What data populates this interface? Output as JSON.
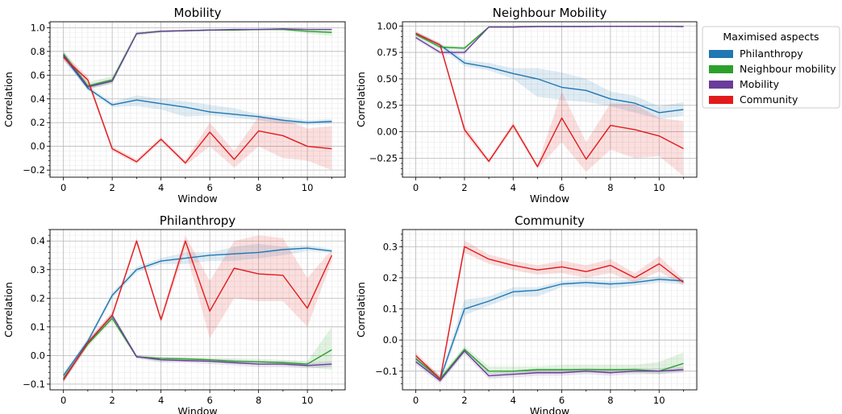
{
  "chart_data": [
    {
      "type": "line",
      "title": "Mobility",
      "xlabel": "Window",
      "ylabel": "Correlation",
      "xlim": [
        -0.55,
        11.55
      ],
      "ylim": [
        -0.26,
        1.05
      ],
      "xticks": [
        0,
        2,
        4,
        6,
        8,
        10
      ],
      "yticks": [
        -0.2,
        0.0,
        0.2,
        0.4,
        0.6,
        0.8,
        1.0
      ],
      "ytick_labels": [
        "−0.2",
        "0.0",
        "0.2",
        "0.4",
        "0.6",
        "0.8",
        "1.0"
      ],
      "grid": true,
      "x": [
        0,
        1,
        2,
        3,
        4,
        5,
        6,
        7,
        8,
        9,
        10,
        11
      ],
      "series": [
        {
          "name": "Philanthropy",
          "values": [
            0.76,
            0.49,
            0.35,
            0.39,
            0.36,
            0.33,
            0.29,
            0.27,
            0.25,
            0.22,
            0.2,
            0.21
          ],
          "lower": [
            0.73,
            0.47,
            0.33,
            0.34,
            0.31,
            0.25,
            0.26,
            0.24,
            0.22,
            0.19,
            0.18,
            0.19
          ],
          "upper": [
            0.79,
            0.51,
            0.37,
            0.43,
            0.4,
            0.38,
            0.35,
            0.32,
            0.27,
            0.25,
            0.22,
            0.23
          ]
        },
        {
          "name": "Neighbour mobility",
          "values": [
            0.78,
            0.51,
            0.56,
            0.95,
            0.97,
            0.975,
            0.98,
            0.98,
            0.985,
            0.985,
            0.97,
            0.96
          ],
          "lower": [
            0.75,
            0.48,
            0.53,
            0.93,
            0.96,
            0.965,
            0.97,
            0.97,
            0.975,
            0.975,
            0.95,
            0.93
          ],
          "upper": [
            0.81,
            0.54,
            0.59,
            0.97,
            0.98,
            0.985,
            0.99,
            0.99,
            0.99,
            0.99,
            0.99,
            0.99
          ]
        },
        {
          "name": "Mobility",
          "values": [
            0.77,
            0.5,
            0.55,
            0.95,
            0.97,
            0.975,
            0.98,
            0.985,
            0.985,
            0.99,
            0.985,
            0.985
          ],
          "lower": [
            0.74,
            0.48,
            0.53,
            0.94,
            0.96,
            0.965,
            0.97,
            0.975,
            0.98,
            0.98,
            0.98,
            0.98
          ],
          "upper": [
            0.8,
            0.52,
            0.57,
            0.96,
            0.975,
            0.98,
            0.985,
            0.99,
            0.99,
            0.995,
            0.99,
            0.99
          ]
        },
        {
          "name": "Community",
          "values": [
            0.75,
            0.56,
            -0.02,
            -0.13,
            0.06,
            -0.14,
            0.12,
            -0.11,
            0.13,
            0.09,
            0.0,
            -0.02
          ],
          "lower": [
            0.72,
            0.53,
            -0.04,
            -0.15,
            0.04,
            -0.16,
            0.0,
            -0.18,
            0.0,
            -0.1,
            -0.12,
            -0.2
          ],
          "upper": [
            0.78,
            0.59,
            0.0,
            -0.11,
            0.08,
            -0.12,
            0.2,
            -0.04,
            0.25,
            0.23,
            0.15,
            0.17
          ]
        }
      ]
    },
    {
      "type": "line",
      "title": "Neighbour Mobility",
      "xlabel": "Window",
      "ylabel": "Correlation",
      "xlim": [
        -0.55,
        11.55
      ],
      "ylim": [
        -0.43,
        1.04
      ],
      "xticks": [
        0,
        2,
        4,
        6,
        8,
        10
      ],
      "yticks": [
        -0.25,
        0.0,
        0.25,
        0.5,
        0.75,
        1.0
      ],
      "ytick_labels": [
        "−0.25",
        "0.00",
        "0.25",
        "0.50",
        "0.75",
        "1.00"
      ],
      "grid": true,
      "x": [
        0,
        1,
        2,
        3,
        4,
        5,
        6,
        7,
        8,
        9,
        10,
        11
      ],
      "series": [
        {
          "name": "Philanthropy",
          "values": [
            0.93,
            0.82,
            0.65,
            0.61,
            0.55,
            0.5,
            0.42,
            0.39,
            0.31,
            0.27,
            0.18,
            0.21
          ],
          "lower": [
            0.91,
            0.8,
            0.62,
            0.58,
            0.5,
            0.33,
            0.3,
            0.28,
            0.24,
            0.18,
            0.12,
            0.15
          ],
          "upper": [
            0.95,
            0.84,
            0.68,
            0.65,
            0.6,
            0.6,
            0.56,
            0.5,
            0.38,
            0.34,
            0.24,
            0.28
          ]
        },
        {
          "name": "Neighbour mobility",
          "values": [
            0.92,
            0.8,
            0.79,
            0.99,
            0.99,
            0.995,
            0.995,
            0.995,
            0.997,
            0.997,
            0.997,
            0.995
          ],
          "lower": [
            0.9,
            0.78,
            0.77,
            0.985,
            0.985,
            0.99,
            0.99,
            0.99,
            0.993,
            0.993,
            0.993,
            0.99
          ],
          "upper": [
            0.94,
            0.82,
            0.81,
            0.995,
            0.995,
            0.998,
            0.998,
            0.998,
            0.999,
            0.999,
            0.999,
            0.998
          ]
        },
        {
          "name": "Mobility",
          "values": [
            0.89,
            0.75,
            0.75,
            0.99,
            0.99,
            0.995,
            0.995,
            0.995,
            0.997,
            0.997,
            0.997,
            0.995
          ],
          "lower": [
            0.87,
            0.73,
            0.73,
            0.985,
            0.985,
            0.99,
            0.99,
            0.99,
            0.993,
            0.993,
            0.993,
            0.99
          ],
          "upper": [
            0.91,
            0.77,
            0.77,
            0.995,
            0.995,
            0.998,
            0.998,
            0.998,
            0.999,
            0.999,
            0.999,
            0.998
          ]
        },
        {
          "name": "Community",
          "values": [
            0.93,
            0.82,
            0.02,
            -0.28,
            0.06,
            -0.33,
            0.13,
            -0.26,
            0.06,
            0.02,
            -0.04,
            -0.16
          ],
          "lower": [
            0.91,
            0.8,
            -0.02,
            -0.3,
            0.03,
            -0.35,
            -0.1,
            -0.38,
            -0.17,
            -0.25,
            -0.23,
            -0.42
          ],
          "upper": [
            0.95,
            0.84,
            0.06,
            -0.26,
            0.09,
            -0.31,
            0.38,
            -0.1,
            0.27,
            0.26,
            0.13,
            0.1
          ]
        }
      ]
    },
    {
      "type": "line",
      "title": "Philanthropy",
      "xlabel": "Window",
      "ylabel": "Correlation",
      "xlim": [
        -0.55,
        11.55
      ],
      "ylim": [
        -0.12,
        0.44
      ],
      "xticks": [
        0,
        2,
        4,
        6,
        8,
        10
      ],
      "yticks": [
        -0.1,
        0.0,
        0.1,
        0.2,
        0.3,
        0.4
      ],
      "ytick_labels": [
        "−0.1",
        "0.0",
        "0.1",
        "0.2",
        "0.3",
        "0.4"
      ],
      "grid": true,
      "x": [
        0,
        1,
        2,
        3,
        4,
        5,
        6,
        7,
        8,
        9,
        10,
        11
      ],
      "series": [
        {
          "name": "Philanthropy",
          "values": [
            -0.07,
            0.05,
            0.21,
            0.3,
            0.33,
            0.34,
            0.35,
            0.355,
            0.36,
            0.37,
            0.375,
            0.365
          ],
          "lower": [
            -0.08,
            0.04,
            0.2,
            0.29,
            0.32,
            0.32,
            0.33,
            0.33,
            0.34,
            0.35,
            0.365,
            0.36
          ],
          "upper": [
            -0.06,
            0.06,
            0.22,
            0.31,
            0.34,
            0.36,
            0.36,
            0.38,
            0.39,
            0.38,
            0.385,
            0.372
          ]
        },
        {
          "name": "Neighbour mobility",
          "values": [
            -0.08,
            0.04,
            0.13,
            -0.005,
            -0.01,
            -0.012,
            -0.015,
            -0.02,
            -0.022,
            -0.025,
            -0.03,
            0.02
          ],
          "lower": [
            -0.09,
            0.03,
            0.12,
            -0.01,
            -0.02,
            -0.02,
            -0.025,
            -0.03,
            -0.03,
            -0.035,
            -0.04,
            -0.05
          ],
          "upper": [
            -0.07,
            0.05,
            0.14,
            0.0,
            -0.005,
            -0.005,
            -0.008,
            -0.01,
            -0.012,
            -0.015,
            -0.02,
            0.1
          ]
        },
        {
          "name": "Mobility",
          "values": [
            -0.085,
            0.045,
            0.14,
            -0.004,
            -0.015,
            -0.018,
            -0.02,
            -0.025,
            -0.03,
            -0.03,
            -0.035,
            -0.03
          ],
          "lower": [
            -0.095,
            0.035,
            0.13,
            -0.01,
            -0.025,
            -0.025,
            -0.03,
            -0.035,
            -0.04,
            -0.04,
            -0.045,
            -0.04
          ],
          "upper": [
            -0.075,
            0.055,
            0.15,
            0.002,
            -0.008,
            -0.01,
            -0.012,
            -0.015,
            -0.02,
            -0.02,
            -0.025,
            -0.02
          ]
        },
        {
          "name": "Community",
          "values": [
            -0.085,
            0.045,
            0.14,
            0.4,
            0.125,
            0.4,
            0.155,
            0.305,
            0.285,
            0.28,
            0.165,
            0.35
          ],
          "lower": [
            -0.095,
            0.035,
            0.13,
            0.39,
            0.115,
            0.37,
            0.06,
            0.2,
            0.19,
            0.19,
            0.1,
            0.33
          ],
          "upper": [
            -0.075,
            0.055,
            0.15,
            0.41,
            0.135,
            0.42,
            0.26,
            0.4,
            0.42,
            0.41,
            0.27,
            0.37
          ]
        }
      ]
    },
    {
      "type": "line",
      "title": "Community",
      "xlabel": "Window",
      "ylabel": "Correlation",
      "xlim": [
        -0.55,
        11.55
      ],
      "ylim": [
        -0.16,
        0.355
      ],
      "xticks": [
        0,
        2,
        4,
        6,
        8,
        10
      ],
      "yticks": [
        -0.1,
        0.0,
        0.1,
        0.2,
        0.3
      ],
      "ytick_labels": [
        "−0.1",
        "0.0",
        "0.1",
        "0.2",
        "0.3"
      ],
      "grid": true,
      "x": [
        0,
        1,
        2,
        3,
        4,
        5,
        6,
        7,
        8,
        9,
        10,
        11
      ],
      "series": [
        {
          "name": "Philanthropy",
          "values": [
            -0.06,
            -0.125,
            0.1,
            0.125,
            0.155,
            0.16,
            0.18,
            0.185,
            0.18,
            0.185,
            0.195,
            0.19
          ],
          "lower": [
            -0.07,
            -0.135,
            0.08,
            0.11,
            0.14,
            0.14,
            0.17,
            0.17,
            0.165,
            0.175,
            0.185,
            0.18
          ],
          "upper": [
            -0.05,
            -0.115,
            0.13,
            0.14,
            0.17,
            0.17,
            0.19,
            0.195,
            0.19,
            0.195,
            0.205,
            0.2
          ]
        },
        {
          "name": "Neighbour mobility",
          "values": [
            -0.06,
            -0.125,
            -0.03,
            -0.1,
            -0.1,
            -0.095,
            -0.095,
            -0.095,
            -0.095,
            -0.095,
            -0.1,
            -0.075
          ],
          "lower": [
            -0.07,
            -0.135,
            -0.04,
            -0.11,
            -0.11,
            -0.105,
            -0.105,
            -0.105,
            -0.105,
            -0.105,
            -0.11,
            -0.1
          ],
          "upper": [
            -0.05,
            -0.115,
            -0.02,
            -0.085,
            -0.085,
            -0.085,
            -0.08,
            -0.08,
            -0.08,
            -0.08,
            -0.07,
            -0.04
          ]
        },
        {
          "name": "Mobility",
          "values": [
            -0.07,
            -0.13,
            -0.035,
            -0.115,
            -0.11,
            -0.105,
            -0.105,
            -0.1,
            -0.105,
            -0.1,
            -0.1,
            -0.095
          ],
          "lower": [
            -0.08,
            -0.14,
            -0.045,
            -0.125,
            -0.12,
            -0.115,
            -0.115,
            -0.11,
            -0.115,
            -0.11,
            -0.11,
            -0.105
          ],
          "upper": [
            -0.06,
            -0.12,
            -0.025,
            -0.105,
            -0.1,
            -0.095,
            -0.095,
            -0.09,
            -0.095,
            -0.09,
            -0.09,
            -0.085
          ]
        },
        {
          "name": "Community",
          "values": [
            -0.05,
            -0.125,
            0.3,
            0.26,
            0.24,
            0.225,
            0.235,
            0.22,
            0.24,
            0.2,
            0.245,
            0.185
          ],
          "lower": [
            -0.06,
            -0.135,
            0.28,
            0.245,
            0.225,
            0.21,
            0.215,
            0.2,
            0.215,
            0.185,
            0.22,
            0.175
          ],
          "upper": [
            -0.04,
            -0.115,
            0.32,
            0.275,
            0.255,
            0.24,
            0.255,
            0.24,
            0.26,
            0.215,
            0.27,
            0.195
          ]
        }
      ]
    }
  ],
  "legend": {
    "title": "Maximised aspects",
    "placement": "right",
    "entries": [
      {
        "label": "Philanthropy",
        "color": "#1f77b4"
      },
      {
        "label": "Neighbour mobility",
        "color": "#2ca02c"
      },
      {
        "label": "Mobility",
        "color": "#6a3d9a"
      },
      {
        "label": "Community",
        "color": "#e31a1c"
      }
    ]
  },
  "colors": {
    "Philanthropy": "#1f77b4",
    "Neighbour mobility": "#2ca02c",
    "Mobility": "#6a3d9a",
    "Community": "#e31a1c"
  }
}
